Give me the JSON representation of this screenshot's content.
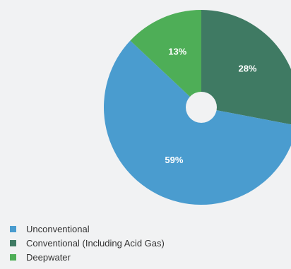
{
  "chart_data": {
    "type": "pie",
    "slices": [
      {
        "name": "Conventional (Including Acid Gas)",
        "value": 28,
        "label": "28%",
        "color": "#3f7a63"
      },
      {
        "name": "Unconventional",
        "value": 59,
        "label": "59%",
        "color": "#4a9ccf"
      },
      {
        "name": "Deepwater",
        "value": 13,
        "label": "13%",
        "color": "#4eae57"
      }
    ],
    "legend": [
      {
        "label": "Unconventional",
        "color": "#4a9ccf"
      },
      {
        "label": "Conventional (Including Acid Gas)",
        "color": "#3f7a63"
      },
      {
        "label": "Deepwater",
        "color": "#4eae57"
      }
    ],
    "legend_position": "bottom-left",
    "donut_hole": true
  },
  "colors": {
    "background": "#f1f2f3",
    "hole": "#f1f2f3"
  }
}
